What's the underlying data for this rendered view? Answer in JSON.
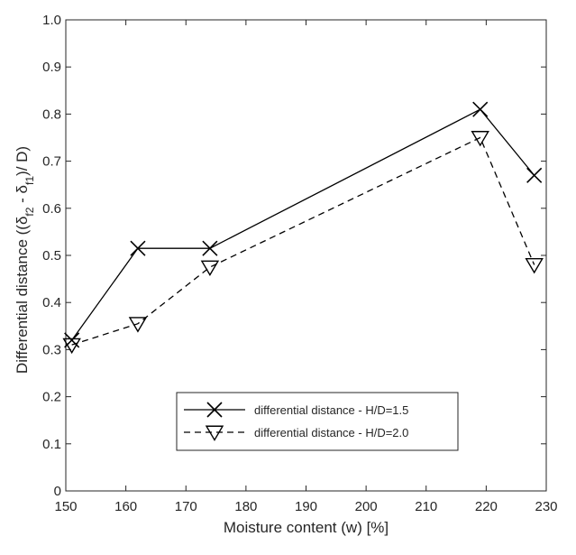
{
  "chart_data": {
    "type": "line",
    "xlabel": "Moisture content (w) [%]",
    "ylabel": {
      "prefix": "Differential distance ((δ",
      "sub1": "f2",
      "mid": " - δ",
      "sub2": "f1",
      "suffix": ")/ D)"
    },
    "xlim": [
      150,
      230
    ],
    "ylim": [
      0,
      1.0
    ],
    "xticks": [
      150,
      160,
      170,
      180,
      190,
      200,
      210,
      220,
      230
    ],
    "yticks": [
      "0",
      "0.1",
      "0.2",
      "0.3",
      "0.4",
      "0.5",
      "0.6",
      "0.7",
      "0.8",
      "0.9",
      "1.0"
    ],
    "grid": false,
    "legend_position": "lower-right",
    "series": [
      {
        "name": "differential distance - H/D=1.5",
        "line_style": "solid",
        "marker": "x",
        "color": "#000000",
        "x": [
          151,
          162,
          174,
          219,
          228
        ],
        "y": [
          0.32,
          0.515,
          0.515,
          0.81,
          0.67
        ]
      },
      {
        "name": "differential distance - H/D=2.0",
        "line_style": "dashed",
        "marker": "triangle-down",
        "color": "#000000",
        "x": [
          151,
          162,
          174,
          219,
          228
        ],
        "y": [
          0.31,
          0.355,
          0.475,
          0.75,
          0.48
        ]
      }
    ]
  }
}
